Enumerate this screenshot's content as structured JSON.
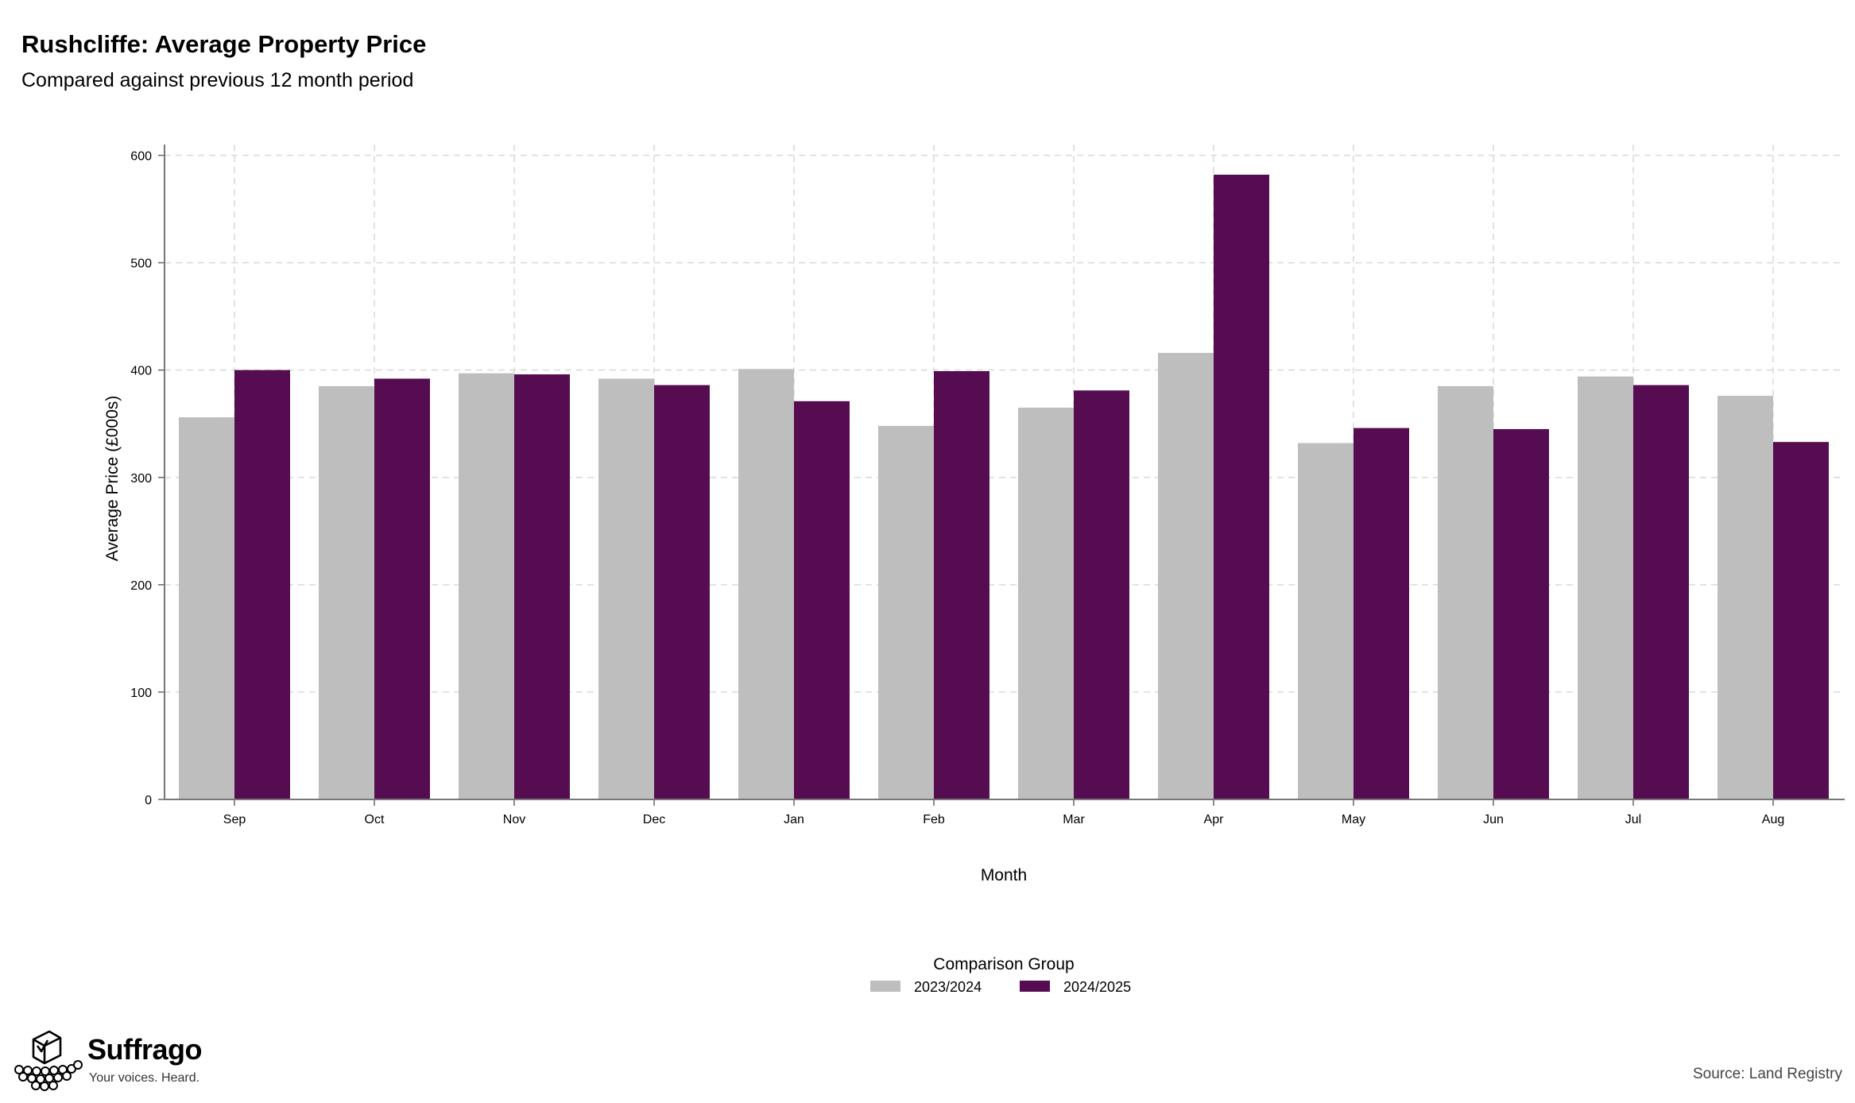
{
  "header": {
    "title": "Rushcliffe: Average Property Price",
    "subtitle": "Compared against previous 12 month period"
  },
  "chart_data": {
    "type": "bar",
    "categories": [
      "Sep",
      "Oct",
      "Nov",
      "Dec",
      "Jan",
      "Feb",
      "Mar",
      "Apr",
      "May",
      "Jun",
      "Jul",
      "Aug"
    ],
    "series": [
      {
        "name": "2023/2024",
        "color": "#bebebe",
        "values": [
          356,
          385,
          397,
          392,
          401,
          348,
          365,
          416,
          332,
          385,
          394,
          376
        ]
      },
      {
        "name": "2024/2025",
        "color": "#560c50",
        "values": [
          400,
          392,
          396,
          386,
          371,
          399,
          381,
          582,
          346,
          345,
          386,
          333
        ]
      }
    ],
    "xlabel": "Month",
    "ylabel": "Average Price (£000s)",
    "ylim": [
      0,
      610
    ],
    "yticks": [
      0,
      100,
      200,
      300,
      400,
      500,
      600
    ],
    "grid": true,
    "legend": {
      "title": "Comparison Group",
      "placement": "bottom-center"
    }
  },
  "footer": {
    "brand_name": "Suffrago",
    "brand_tagline": "Your voices. Heard.",
    "logo_icon": "ballot-box-icon",
    "source": "Source: Land Registry"
  }
}
